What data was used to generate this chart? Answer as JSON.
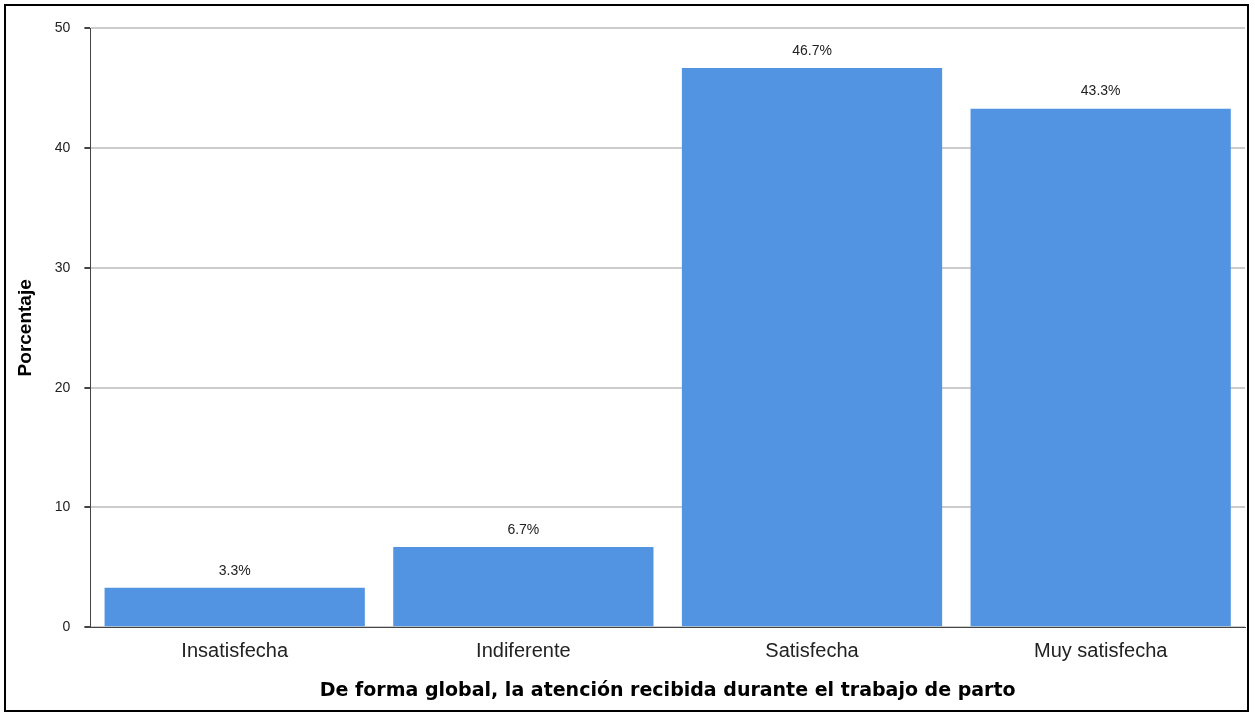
{
  "chart_data": {
    "type": "bar",
    "xlabel": "De forma global, la atención recibida durante el trabajo de parto",
    "ylabel": "Porcentaje",
    "categories": [
      "Insatisfecha",
      "Indiferente",
      "Satisfecha",
      "Muy satisfecha"
    ],
    "values": [
      3.3,
      6.7,
      46.7,
      43.3
    ],
    "value_labels": [
      "3.3%",
      "6.7%",
      "46.7%",
      "43.3%"
    ],
    "color": "#5294e2",
    "ylim": [
      0,
      50
    ],
    "yticks": [
      0,
      10,
      20,
      30,
      40,
      50
    ],
    "grid": "y",
    "legend": false
  }
}
